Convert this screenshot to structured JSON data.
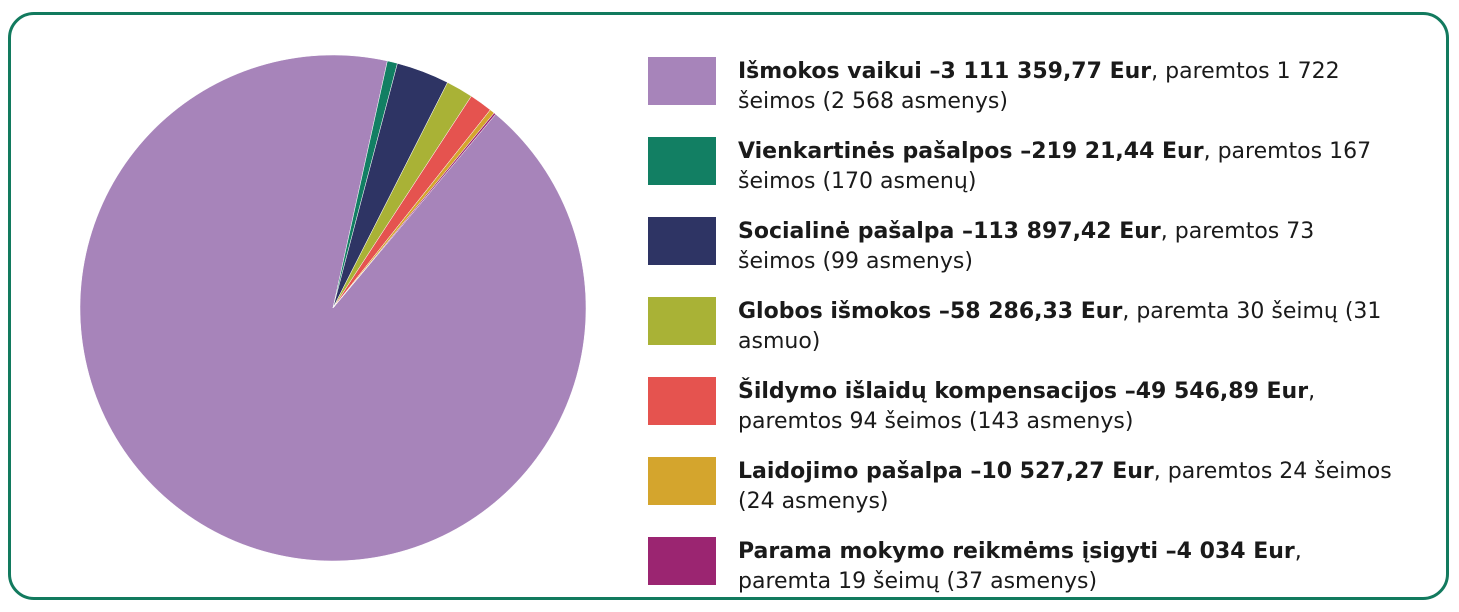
{
  "chart_data": {
    "type": "pie",
    "categories": [
      "Išmokos vaikui",
      "Vienkartinės pašalpos",
      "Socialinė pašalpa",
      "Globos išmokos",
      "Šildymo išlaidų kompensacijos",
      "Laidojimo pašalpa",
      "Parama mokymo reikmėms įsigyti"
    ],
    "values": [
      3111359.77,
      21921.44,
      113897.42,
      58286.33,
      49546.89,
      10527.27,
      4034
    ],
    "value_labels": [
      "3 111 359,77 Eur",
      "219 21,44 Eur",
      "113 897,42 Eur",
      "58 286,33 Eur",
      "49 546,89 Eur",
      "10 527,27 Eur",
      "4 034 Eur"
    ],
    "details": [
      "paremtos 1 722 šeimos (2 568 asmenys)",
      "paremtos 167 šeimos (170 asmenų)",
      "paremtos 73 šeimos (99 asmenys)",
      "paremta 30 šeimų (31 asmuo)",
      "paremtos 94 šeimos (143 asmenys)",
      "paremtos 24 šeimos (24 asmenys)",
      "paremta 19 šeimų (37 asmenys)"
    ],
    "colors": [
      "#a784ba",
      "#127f63",
      "#2e3464",
      "#a9b236",
      "#e5534f",
      "#d4a52d",
      "#9b2571"
    ]
  }
}
